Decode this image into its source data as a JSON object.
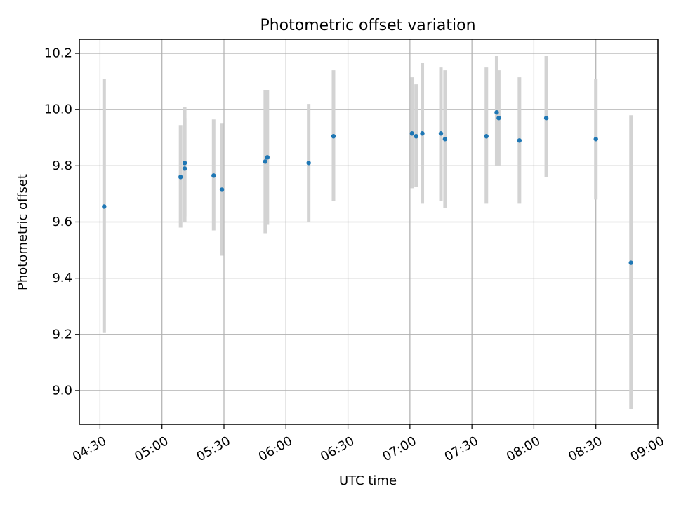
{
  "chart_data": {
    "type": "scatter",
    "title": "Photometric offset variation",
    "xlabel": "UTC time",
    "ylabel": "Photometric offset",
    "xlim": [
      "04:20",
      "09:00"
    ],
    "ylim": [
      8.88,
      10.25
    ],
    "x_ticks": [
      "04:30",
      "05:00",
      "05:30",
      "06:00",
      "06:30",
      "07:00",
      "07:30",
      "08:00",
      "08:30",
      "09:00"
    ],
    "y_ticks": [
      "9.0",
      "9.2",
      "9.4",
      "9.6",
      "9.8",
      "10.0",
      "10.2"
    ],
    "grid": true,
    "colors": {
      "point": "#1f77b4",
      "errorbar": "#d3d3d3",
      "grid": "#b0b0b0"
    },
    "series": [
      {
        "points": [
          {
            "x": "04:32",
            "y": 9.655,
            "ymin": 9.205,
            "ymax": 10.11
          },
          {
            "x": "05:09",
            "y": 9.76,
            "ymin": 9.58,
            "ymax": 9.945
          },
          {
            "x": "05:11",
            "y": 9.79,
            "ymin": 9.6,
            "ymax": 9.97
          },
          {
            "x": "05:11",
            "y": 9.81,
            "ymin": 9.62,
            "ymax": 10.01
          },
          {
            "x": "05:25",
            "y": 9.765,
            "ymin": 9.57,
            "ymax": 9.965
          },
          {
            "x": "05:29",
            "y": 9.715,
            "ymin": 9.48,
            "ymax": 9.95
          },
          {
            "x": "05:50",
            "y": 9.815,
            "ymin": 9.56,
            "ymax": 10.07
          },
          {
            "x": "05:51",
            "y": 9.83,
            "ymin": 9.59,
            "ymax": 10.07
          },
          {
            "x": "06:11",
            "y": 9.81,
            "ymin": 9.6,
            "ymax": 10.02
          },
          {
            "x": "06:23",
            "y": 9.905,
            "ymin": 9.675,
            "ymax": 10.14
          },
          {
            "x": "07:01",
            "y": 9.915,
            "ymin": 9.72,
            "ymax": 10.115
          },
          {
            "x": "07:03",
            "y": 9.905,
            "ymin": 9.725,
            "ymax": 10.09
          },
          {
            "x": "07:06",
            "y": 9.915,
            "ymin": 9.665,
            "ymax": 10.165
          },
          {
            "x": "07:15",
            "y": 9.915,
            "ymin": 9.675,
            "ymax": 10.15
          },
          {
            "x": "07:17",
            "y": 9.895,
            "ymin": 9.65,
            "ymax": 10.14
          },
          {
            "x": "07:37",
            "y": 9.905,
            "ymin": 9.665,
            "ymax": 10.15
          },
          {
            "x": "07:42",
            "y": 9.99,
            "ymin": 9.8,
            "ymax": 10.19
          },
          {
            "x": "07:43",
            "y": 9.97,
            "ymin": 9.8,
            "ymax": 10.14
          },
          {
            "x": "07:53",
            "y": 9.89,
            "ymin": 9.665,
            "ymax": 10.115
          },
          {
            "x": "08:06",
            "y": 9.97,
            "ymin": 9.76,
            "ymax": 10.19
          },
          {
            "x": "08:30",
            "y": 9.895,
            "ymin": 9.68,
            "ymax": 10.11
          },
          {
            "x": "08:47",
            "y": 9.455,
            "ymin": 8.935,
            "ymax": 9.98
          }
        ]
      }
    ]
  }
}
